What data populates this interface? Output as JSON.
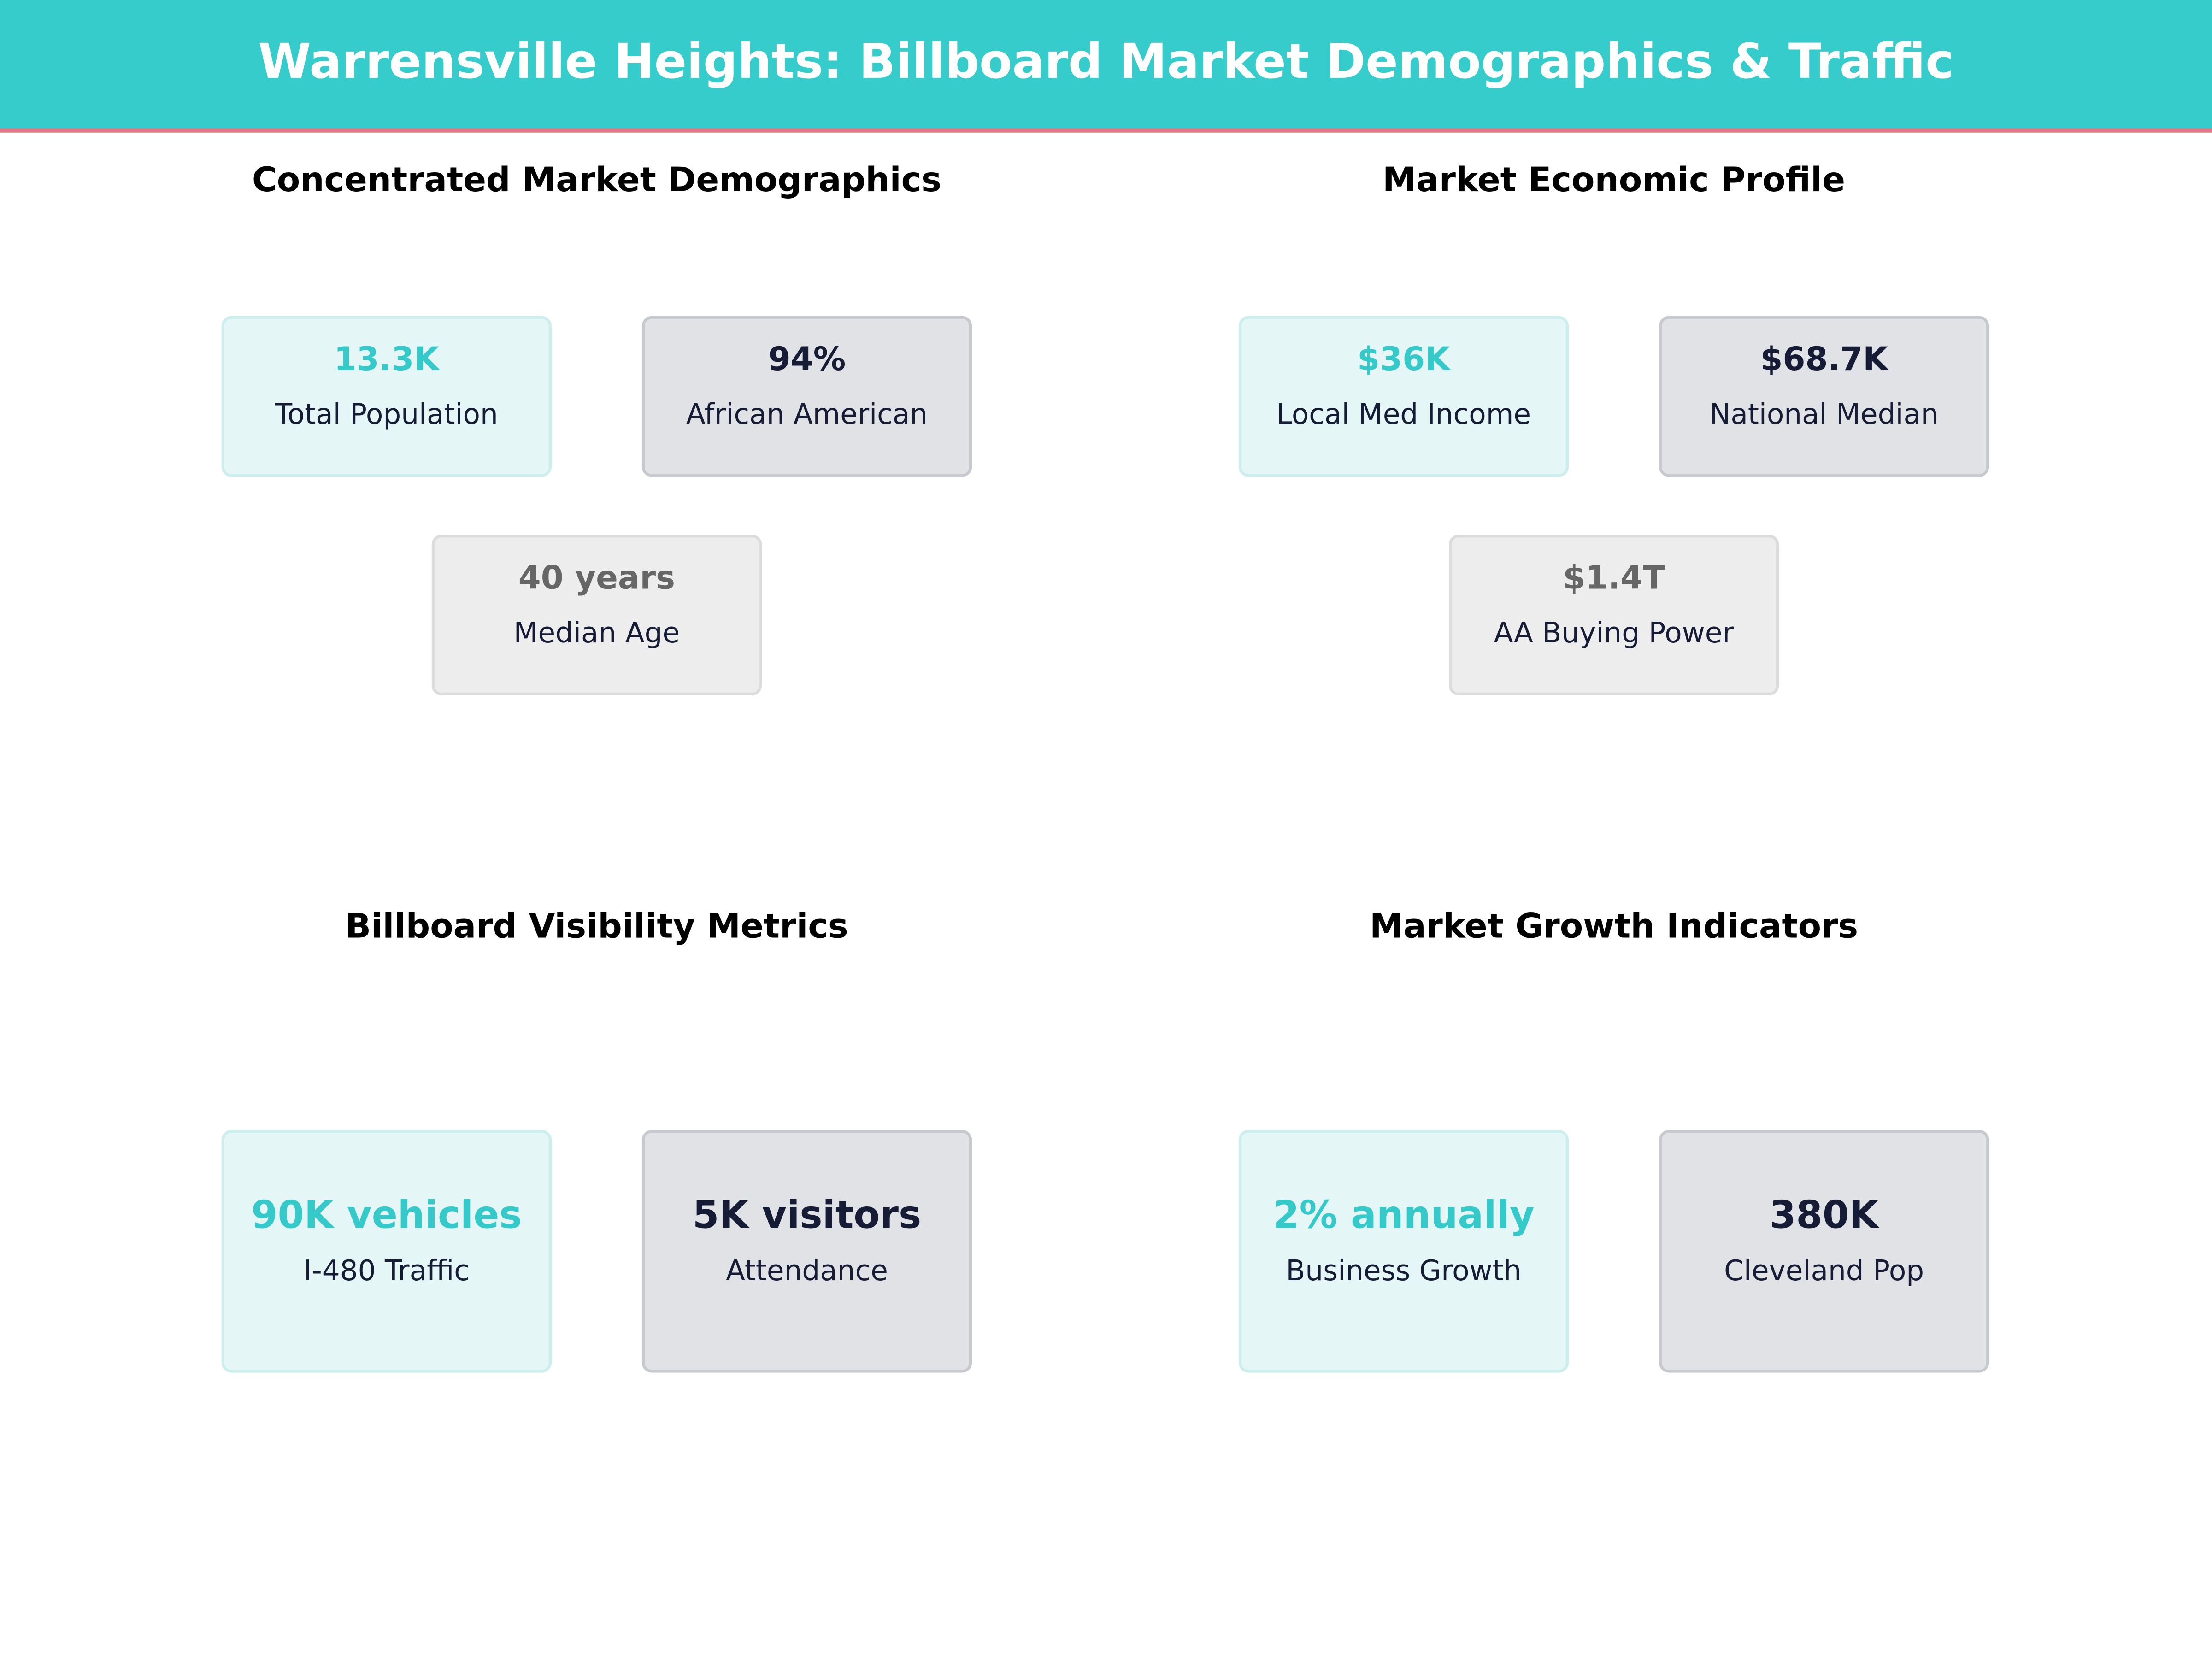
{
  "header": {
    "title": "Warrensville Heights: Billboard Market Demographics & Traffic"
  },
  "panels": [
    {
      "title": "Concentrated Market Demographics",
      "cards": [
        {
          "value": "13.3K",
          "label": "Total Population"
        },
        {
          "value": "94%",
          "label": "African American"
        },
        {
          "value": "40 years",
          "label": "Median Age"
        }
      ]
    },
    {
      "title": "Market Economic Profile",
      "cards": [
        {
          "value": "$36K",
          "label": "Local Med Income"
        },
        {
          "value": "$68.7K",
          "label": "National Median"
        },
        {
          "value": "$1.4T",
          "label": "AA Buying Power"
        }
      ]
    },
    {
      "title": "Billboard Visibility Metrics",
      "cards": [
        {
          "value": "90K vehicles",
          "label": "I-480 Traffic"
        },
        {
          "value": "5K visitors",
          "label": "Attendance"
        }
      ]
    },
    {
      "title": "Market Growth Indicators",
      "cards": [
        {
          "value": "2% annually",
          "label": "Business Growth"
        },
        {
          "value": "380K",
          "label": "Cleveland Pop"
        }
      ]
    }
  ]
}
